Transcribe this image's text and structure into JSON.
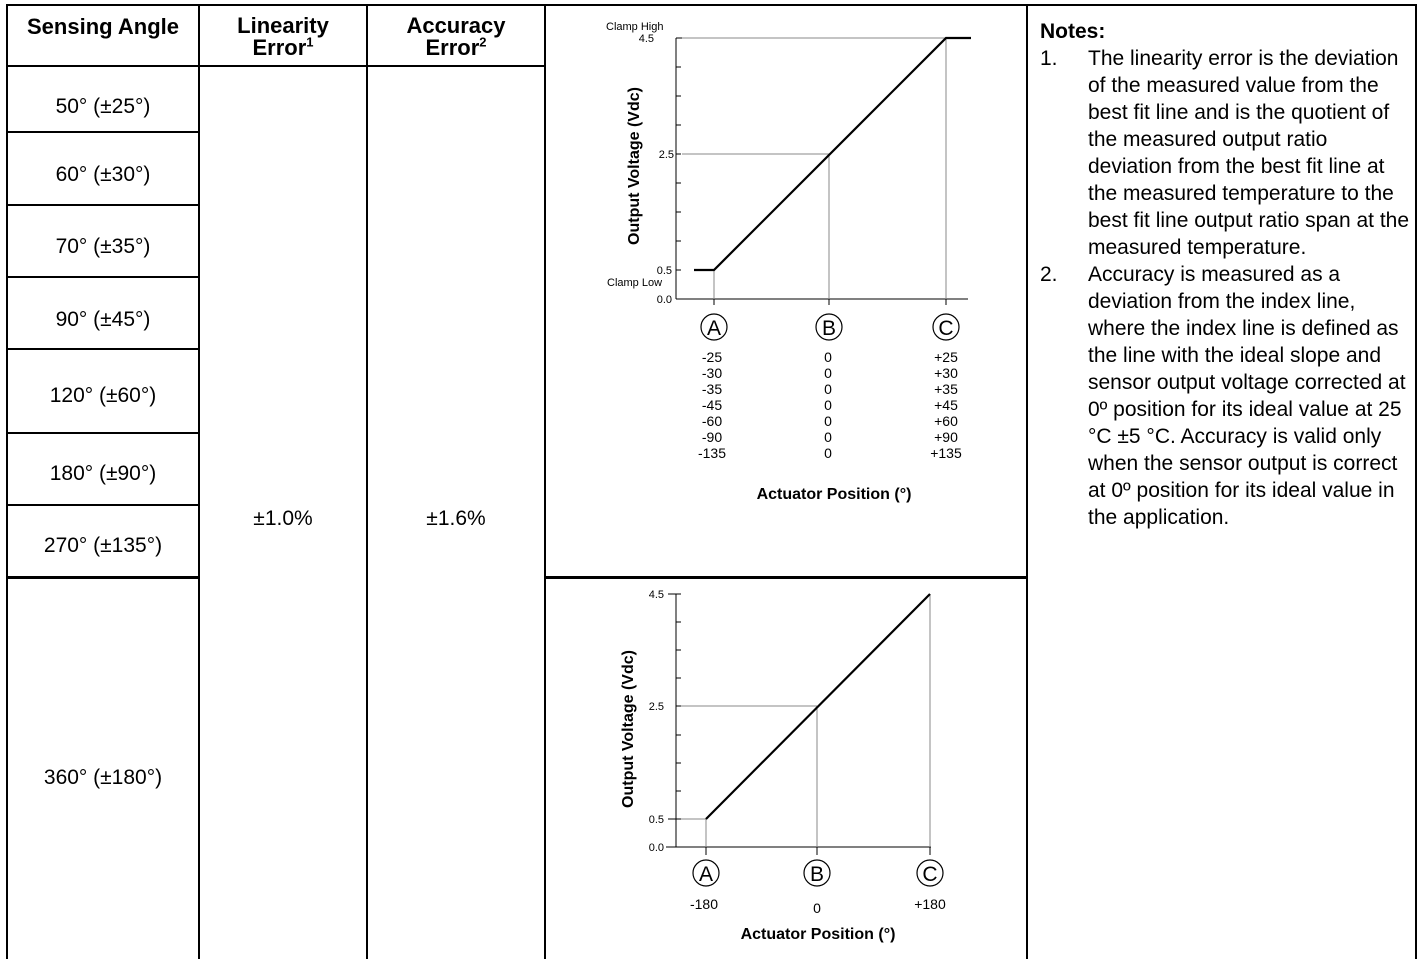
{
  "headers": {
    "sensing_angle": "Sensing Angle",
    "linearity_main": "Linearity",
    "linearity_sub": "Error",
    "linearity_sup": "1",
    "accuracy_main": "Accuracy",
    "accuracy_sub": "Error",
    "accuracy_sup": "2"
  },
  "angles": [
    "50° (±25°)",
    "60° (±30°)",
    "70° (±35°)",
    "90° (±45°)",
    "120° (±60°)",
    "180° (±90°)",
    "270° (±135°)",
    "360° (±180°)"
  ],
  "linearity_value": "±1.0%",
  "accuracy_value": "±1.6%",
  "chart_data": [
    {
      "type": "line",
      "ylabel": "Output Voltage (Vdc)",
      "xlabel": "Actuator Position (°)",
      "ylim": [
        0,
        4.5
      ],
      "y_ticks": [
        "4.5",
        "2.5",
        "0.5",
        "0.0"
      ],
      "y_annotations": [
        "Clamp High",
        "Clamp Low"
      ],
      "x_markers": [
        "A",
        "B",
        "C"
      ],
      "x": [
        "clamp",
        "A",
        "B",
        "C",
        "clamp"
      ],
      "y": [
        0.5,
        0.5,
        2.5,
        4.5,
        4.5
      ],
      "position_rows": [
        [
          "-25",
          "0",
          "+25"
        ],
        [
          "-30",
          "0",
          "+30"
        ],
        [
          "-35",
          "0",
          "+35"
        ],
        [
          "-45",
          "0",
          "+45"
        ],
        [
          "-60",
          "0",
          "+60"
        ],
        [
          "-90",
          "0",
          "+90"
        ],
        [
          "-135",
          "0",
          "+135"
        ]
      ]
    },
    {
      "type": "line",
      "ylabel": "Output Voltage (Vdc)",
      "xlabel": "Actuator Position (°)",
      "ylim": [
        0,
        4.5
      ],
      "y_ticks": [
        "4.5",
        "2.5",
        "0.5",
        "0.0"
      ],
      "x_markers": [
        "A",
        "B",
        "C"
      ],
      "x": [
        -180,
        0,
        180
      ],
      "y": [
        0.5,
        2.5,
        4.5
      ],
      "x_tick_labels": [
        "-180",
        "0",
        "+180"
      ]
    }
  ],
  "notes": {
    "title": "Notes:",
    "items": [
      {
        "num": "1.",
        "text": "The linearity error is the deviation of the measured value from the best fit line and is the quotient of the measured output ratio deviation from the best fit line at the measured temperature to the best fit line output ratio span at the measured temperature."
      },
      {
        "num": "2.",
        "text": "Accuracy is measured as a deviation from the index line, where the index line is defined as the line with the ideal slope and sensor output voltage corrected at 0º position for its ideal value at 25 °C ±5 °C. Accuracy is valid only when the sensor output is correct at 0º position for its ideal value in the application."
      }
    ]
  }
}
